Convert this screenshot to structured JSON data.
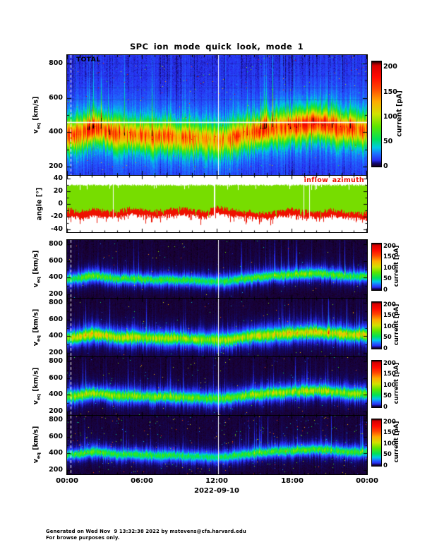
{
  "title": "SPC ion mode quick look, mode 1",
  "date_label": "2022-09-10",
  "footer": {
    "line1": "Generated on Wed Nov  9 13:32:38 2022 by mstevens@cfa.harvard.edu",
    "line2": "For browse purposes only."
  },
  "axes": {
    "time_ticks": [
      "00:00",
      "06:00",
      "12:00",
      "18:00",
      "00:00"
    ],
    "time_tick_hours": [
      0,
      6,
      12,
      18,
      24
    ],
    "v_label": {
      "prefix": "v",
      "sub": "eq",
      "unit": " [km/s]"
    },
    "v_ticks": [
      800,
      600,
      400,
      200
    ],
    "v_range": [
      150,
      850
    ],
    "angle_label": "angle [°]",
    "angle_ticks": [
      40,
      20,
      0,
      -20,
      -40
    ],
    "angle_range": [
      -45,
      45
    ]
  },
  "colorbar": {
    "label": "current [pA]",
    "ticks": [
      200,
      150,
      100,
      50,
      0
    ],
    "range": [
      0,
      200
    ]
  },
  "colors": {
    "frame": "#000000",
    "legend_red": "#ee1100",
    "angle_green": "#77dd00",
    "angle_red": "#ee1100",
    "top_background_blue": "#2a2ff0",
    "channel_background": "#0a0012"
  },
  "panels": {
    "total": {
      "tag": "TOTAL"
    },
    "angle": {
      "legend": "inflow azimuth"
    }
  },
  "chart_data": [
    {
      "id": "total",
      "type": "heatmap",
      "title": "TOTAL",
      "ylabel": "veq [km/s]",
      "ylim": [
        150,
        850
      ],
      "yticks": [
        200,
        400,
        600,
        800
      ],
      "xlabel": "2022-09-10",
      "xticks": [
        "00:00",
        "06:00",
        "12:00",
        "18:00",
        "00:00"
      ],
      "colorbar_label": "current [pA]",
      "colorbar_lim": [
        0,
        200
      ],
      "hours": [
        0,
        1,
        2,
        3,
        4,
        5,
        6,
        7,
        8,
        9,
        10,
        11,
        12,
        13,
        14,
        15,
        16,
        17,
        18,
        19,
        20,
        21,
        22,
        23
      ],
      "band_center_kms": [
        380,
        390,
        420,
        408,
        382,
        386,
        380,
        372,
        376,
        370,
        366,
        356,
        352,
        362,
        382,
        400,
        415,
        424,
        432,
        444,
        450,
        436,
        422,
        414
      ],
      "peak_current_pA": [
        115,
        125,
        140,
        132,
        118,
        122,
        118,
        112,
        115,
        110,
        108,
        98,
        102,
        108,
        116,
        122,
        128,
        130,
        133,
        140,
        142,
        133,
        126,
        122
      ],
      "plume_activity": [
        0.6,
        0.8,
        1.0,
        0.9,
        0.6,
        0.7,
        0.7,
        0.5,
        0.5,
        0.5,
        0.4,
        0.3,
        0.35,
        0.45,
        0.7,
        0.9,
        0.95,
        0.85,
        0.9,
        1.0,
        1.0,
        0.9,
        0.8,
        0.85
      ],
      "features": {
        "white_hline_kms": 460,
        "white_vline_hour": 12.3,
        "dashed_white_vline_hour": 0.3,
        "background_level_pA": 10
      }
    },
    {
      "id": "angle",
      "type": "area+line",
      "legend": "inflow azimuth",
      "ylabel": "angle [°]",
      "ylim": [
        -40,
        40
      ],
      "yticks": [
        -40,
        -20,
        0,
        20,
        40
      ],
      "green_band_upper_deg": 30,
      "green_band_lower_deg_hourly": [
        -6,
        -12,
        -8,
        -10,
        -12,
        -7,
        -9,
        -11,
        -9,
        -7,
        -9,
        -13,
        -5,
        -9,
        -11,
        -13,
        -15,
        -11,
        -7,
        -11,
        -14,
        -9,
        -12,
        -14
      ],
      "red_azimuth_deg_hourly": [
        -14,
        -18,
        -15,
        -16,
        -17,
        -12,
        -14,
        -16,
        -14,
        -12,
        -14,
        -18,
        -10,
        -14,
        -16,
        -17,
        -19,
        -15,
        -12,
        -16,
        -18,
        -14,
        -16,
        -19
      ]
    },
    {
      "id": "channel-1",
      "type": "heatmap",
      "ylabel": "veq [km/s]",
      "ylim": [
        150,
        850
      ],
      "yticks": [
        200,
        400,
        600,
        800
      ],
      "colorbar_label": "current [pA]",
      "colorbar_lim": [
        0,
        200
      ],
      "band_center_kms": [
        380,
        390,
        420,
        408,
        382,
        386,
        380,
        372,
        376,
        370,
        366,
        356,
        352,
        362,
        382,
        400,
        415,
        424,
        432,
        444,
        450,
        436,
        422,
        414
      ],
      "peak_current_pA": [
        52,
        56,
        63,
        59,
        53,
        55,
        53,
        50,
        52,
        50,
        49,
        44,
        46,
        49,
        52,
        55,
        58,
        59,
        60,
        63,
        64,
        60,
        57,
        55
      ]
    },
    {
      "id": "channel-2",
      "type": "heatmap",
      "ylabel": "veq [km/s]",
      "ylim": [
        150,
        850
      ],
      "yticks": [
        200,
        400,
        600,
        800
      ],
      "colorbar_label": "current [pA]",
      "colorbar_lim": [
        0,
        200
      ],
      "band_center_kms": [
        380,
        390,
        420,
        408,
        382,
        386,
        380,
        372,
        376,
        370,
        366,
        356,
        352,
        362,
        382,
        400,
        415,
        424,
        432,
        444,
        450,
        436,
        422,
        414
      ],
      "peak_current_pA": [
        81,
        88,
        98,
        92,
        83,
        85,
        83,
        78,
        81,
        77,
        76,
        69,
        71,
        76,
        81,
        85,
        90,
        91,
        93,
        98,
        99,
        93,
        88,
        85
      ]
    },
    {
      "id": "channel-3",
      "type": "heatmap",
      "ylabel": "veq [km/s]",
      "ylim": [
        150,
        850
      ],
      "yticks": [
        200,
        400,
        600,
        800
      ],
      "colorbar_label": "current [pA]",
      "colorbar_lim": [
        0,
        200
      ],
      "band_center_kms": [
        380,
        390,
        420,
        408,
        382,
        386,
        380,
        372,
        376,
        370,
        366,
        356,
        352,
        362,
        382,
        400,
        415,
        424,
        432,
        444,
        450,
        436,
        422,
        414
      ],
      "peak_current_pA": [
        67,
        73,
        81,
        77,
        68,
        71,
        68,
        65,
        67,
        64,
        63,
        57,
        59,
        63,
        67,
        71,
        74,
        75,
        77,
        81,
        82,
        77,
        73,
        71
      ]
    },
    {
      "id": "channel-4",
      "type": "heatmap",
      "ylabel": "veq [km/s]",
      "ylim": [
        150,
        850
      ],
      "yticks": [
        200,
        400,
        600,
        800
      ],
      "colorbar_label": "current [pA]",
      "colorbar_lim": [
        0,
        200
      ],
      "band_center_kms": [
        380,
        390,
        420,
        408,
        382,
        386,
        380,
        372,
        376,
        370,
        366,
        356,
        352,
        362,
        382,
        400,
        415,
        424,
        432,
        444,
        450,
        436,
        422,
        414
      ],
      "peak_current_pA": [
        48,
        53,
        59,
        55,
        50,
        51,
        50,
        47,
        48,
        46,
        45,
        41,
        43,
        45,
        49,
        51,
        54,
        55,
        56,
        59,
        60,
        56,
        53,
        51
      ]
    }
  ]
}
